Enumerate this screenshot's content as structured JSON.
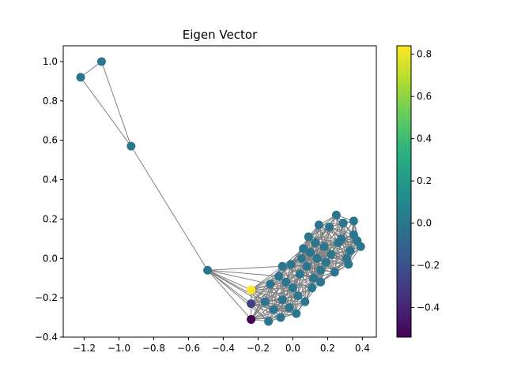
{
  "chart_data": {
    "type": "scatter",
    "title": "Eigen Vector",
    "xlabel": "",
    "ylabel": "",
    "xlim": [
      -1.32,
      0.48
    ],
    "ylim": [
      -0.4,
      1.08
    ],
    "xticks": [
      -1.2,
      -1.0,
      -0.8,
      -0.6,
      -0.4,
      -0.2,
      0.0,
      0.2,
      0.4
    ],
    "yticks": [
      -0.4,
      -0.2,
      0.0,
      0.2,
      0.4,
      0.6,
      0.8,
      1.0
    ],
    "xtick_labels": [
      "−1.2",
      "−1.0",
      "−0.8",
      "−0.6",
      "−0.4",
      "−0.2",
      "0.0",
      "0.2",
      "0.4"
    ],
    "ytick_labels": [
      "−0.4",
      "−0.2",
      "0.0",
      "0.2",
      "0.4",
      "0.6",
      "0.8",
      "1.0"
    ],
    "grid": false,
    "edge_color": "#808080",
    "colormap": "viridis",
    "colorbar": {
      "range": [
        -0.54,
        0.84
      ],
      "ticks": [
        -0.4,
        -0.2,
        0.0,
        0.2,
        0.4,
        0.6,
        0.8
      ],
      "tick_labels": [
        "−0.4",
        "−0.2",
        "0.0",
        "0.2",
        "0.4",
        "0.6",
        "0.8"
      ]
    },
    "nodes": [
      {
        "x": -1.1,
        "y": 1.0,
        "v": 0.0
      },
      {
        "x": -1.22,
        "y": 0.92,
        "v": 0.0
      },
      {
        "x": -0.93,
        "y": 0.57,
        "v": 0.0
      },
      {
        "x": -0.49,
        "y": -0.06,
        "v": 0.0
      },
      {
        "x": -0.24,
        "y": -0.16,
        "v": 0.84
      },
      {
        "x": -0.24,
        "y": -0.23,
        "v": -0.28
      },
      {
        "x": -0.24,
        "y": -0.31,
        "v": -0.54
      },
      {
        "x": -0.16,
        "y": -0.22,
        "v": 0.0
      },
      {
        "x": -0.14,
        "y": -0.32,
        "v": 0.0
      },
      {
        "x": -0.13,
        "y": -0.13,
        "v": 0.0
      },
      {
        "x": -0.11,
        "y": -0.26,
        "v": 0.0
      },
      {
        "x": -0.08,
        "y": -0.09,
        "v": 0.0
      },
      {
        "x": -0.07,
        "y": -0.3,
        "v": 0.0
      },
      {
        "x": -0.06,
        "y": -0.04,
        "v": 0.0
      },
      {
        "x": -0.06,
        "y": -0.21,
        "v": 0.0
      },
      {
        "x": -0.04,
        "y": -0.12,
        "v": 0.0
      },
      {
        "x": -0.02,
        "y": -0.25,
        "v": 0.0
      },
      {
        "x": -0.01,
        "y": -0.03,
        "v": 0.0
      },
      {
        "x": 0.0,
        "y": -0.15,
        "v": 0.0
      },
      {
        "x": 0.02,
        "y": -0.28,
        "v": 0.0
      },
      {
        "x": 0.03,
        "y": -0.19,
        "v": 0.0
      },
      {
        "x": 0.04,
        "y": -0.08,
        "v": 0.0
      },
      {
        "x": 0.05,
        "y": 0.0,
        "v": 0.0
      },
      {
        "x": 0.06,
        "y": 0.05,
        "v": 0.0
      },
      {
        "x": 0.07,
        "y": -0.22,
        "v": 0.0
      },
      {
        "x": 0.08,
        "y": -0.04,
        "v": 0.0
      },
      {
        "x": 0.09,
        "y": 0.11,
        "v": 0.0
      },
      {
        "x": 0.1,
        "y": 0.03,
        "v": 0.0
      },
      {
        "x": 0.11,
        "y": -0.15,
        "v": 0.0
      },
      {
        "x": 0.12,
        "y": -0.1,
        "v": 0.0
      },
      {
        "x": 0.13,
        "y": 0.08,
        "v": 0.0
      },
      {
        "x": 0.14,
        "y": 0.0,
        "v": 0.0
      },
      {
        "x": 0.15,
        "y": 0.17,
        "v": 0.0
      },
      {
        "x": 0.16,
        "y": -0.06,
        "v": 0.0
      },
      {
        "x": 0.16,
        "y": -0.12,
        "v": 0.0
      },
      {
        "x": 0.18,
        "y": 0.06,
        "v": 0.0
      },
      {
        "x": 0.19,
        "y": -0.02,
        "v": 0.0
      },
      {
        "x": 0.21,
        "y": 0.16,
        "v": 0.0
      },
      {
        "x": 0.22,
        "y": 0.02,
        "v": 0.0
      },
      {
        "x": 0.24,
        "y": -0.07,
        "v": 0.0
      },
      {
        "x": 0.25,
        "y": 0.22,
        "v": 0.0
      },
      {
        "x": 0.26,
        "y": 0.08,
        "v": 0.0
      },
      {
        "x": 0.28,
        "y": 0.1,
        "v": 0.0
      },
      {
        "x": 0.29,
        "y": 0.18,
        "v": 0.0
      },
      {
        "x": 0.31,
        "y": 0.0,
        "v": 0.0
      },
      {
        "x": 0.32,
        "y": -0.03,
        "v": 0.0
      },
      {
        "x": 0.33,
        "y": 0.04,
        "v": 0.0
      },
      {
        "x": 0.35,
        "y": 0.19,
        "v": 0.0
      },
      {
        "x": 0.35,
        "y": 0.12,
        "v": 0.0
      },
      {
        "x": 0.37,
        "y": 0.09,
        "v": 0.0
      },
      {
        "x": 0.39,
        "y": 0.06,
        "v": 0.0
      }
    ]
  }
}
